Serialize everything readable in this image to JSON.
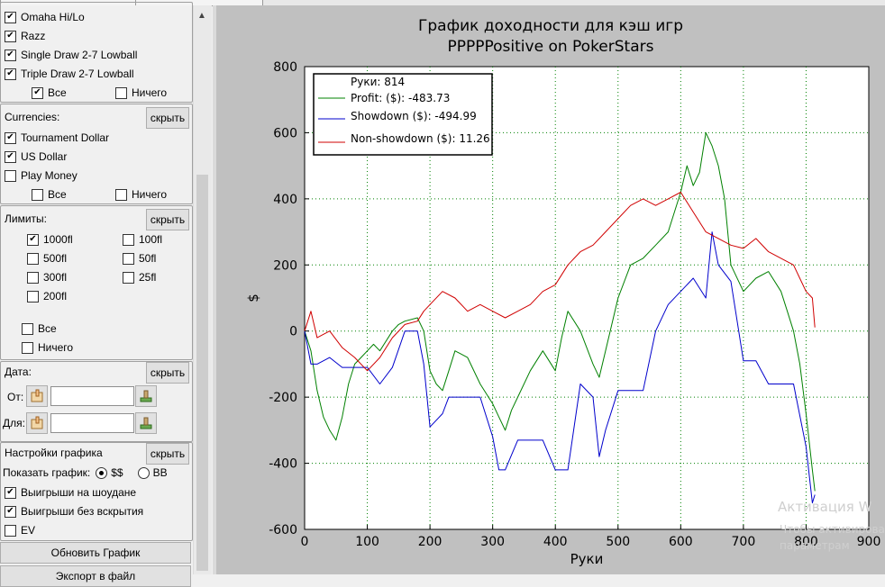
{
  "games": {
    "items": [
      {
        "label": "Omaha Hi/Lo",
        "checked": true
      },
      {
        "label": "Razz",
        "checked": true
      },
      {
        "label": "Single Draw 2-7 Lowball",
        "checked": true
      },
      {
        "label": "Triple Draw 2-7 Lowball",
        "checked": true
      }
    ],
    "all_label": "Все",
    "none_label": "Ничего"
  },
  "currencies": {
    "title": "Currencies:",
    "hide_label": "скрыть",
    "items": [
      {
        "label": "Tournament Dollar",
        "checked": true
      },
      {
        "label": "US Dollar",
        "checked": true
      },
      {
        "label": "Play Money",
        "checked": false
      }
    ],
    "all_label": "Все",
    "none_label": "Ничего"
  },
  "limits": {
    "title": "Лимиты:",
    "hide_label": "скрыть",
    "left": [
      {
        "label": "1000fl",
        "checked": true
      },
      {
        "label": "500fl",
        "checked": false
      },
      {
        "label": "300fl",
        "checked": false
      },
      {
        "label": "200fl",
        "checked": false
      }
    ],
    "right": [
      {
        "label": "100fl",
        "checked": false
      },
      {
        "label": "50fl",
        "checked": false
      },
      {
        "label": "25fl",
        "checked": false
      }
    ],
    "all_label": "Все",
    "none_label": "Ничего"
  },
  "date": {
    "title": "Дата:",
    "hide_label": "скрыть",
    "from_label": "От:",
    "to_label": "Для:",
    "from_value": "",
    "to_value": ""
  },
  "graph_settings": {
    "title": "Настройки  графика",
    "hide_label": "скрыть",
    "show_label": "Показать график:",
    "opt_money": "$$",
    "opt_bb": "BB",
    "selected": "$$",
    "checks": [
      {
        "label": "Выигрыши на шоудане",
        "checked": true
      },
      {
        "label": "Выигрыши без вскрытия",
        "checked": true
      },
      {
        "label": "EV",
        "checked": false
      }
    ]
  },
  "buttons": {
    "refresh": "Обновить График",
    "export": "Экспорт в файл"
  },
  "watermark": {
    "line1": "Активация W",
    "line2": "Чтобы активирова",
    "line3": "параметрам"
  },
  "colors": {
    "profit": "#008000",
    "showdown": "#0000cc",
    "nonshowdown": "#d00000",
    "panel": "#c0c0c0",
    "grid": "#008000"
  },
  "chart_data": {
    "type": "line",
    "title": "График доходности для кэш игр",
    "subtitle": "PPPPPositive on PokerStars",
    "xlabel": "Руки",
    "ylabel": "$",
    "xlim": [
      0,
      900
    ],
    "ylim": [
      -600,
      800
    ],
    "xticks": [
      0,
      100,
      200,
      300,
      400,
      500,
      600,
      700,
      800,
      900
    ],
    "yticks": [
      800,
      600,
      400,
      200,
      0,
      -200,
      -400,
      -600
    ],
    "grid": true,
    "legend_position": "top-left",
    "legend_header": "Руки: 814",
    "series": [
      {
        "name": "Profit: ($): -483.73",
        "color": "#008000",
        "x": [
          0,
          10,
          20,
          30,
          40,
          50,
          60,
          70,
          80,
          90,
          100,
          110,
          120,
          140,
          150,
          160,
          180,
          190,
          200,
          210,
          220,
          230,
          240,
          260,
          280,
          300,
          310,
          320,
          330,
          340,
          360,
          380,
          400,
          410,
          420,
          440,
          460,
          470,
          480,
          500,
          520,
          540,
          560,
          580,
          600,
          610,
          620,
          630,
          640,
          650,
          660,
          670,
          680,
          700,
          720,
          740,
          760,
          770,
          780,
          790,
          800,
          810,
          814
        ],
        "y": [
          0,
          -60,
          -180,
          -260,
          -300,
          -330,
          -260,
          -160,
          -100,
          -80,
          -60,
          -40,
          -60,
          0,
          20,
          30,
          40,
          0,
          -120,
          -160,
          -180,
          -120,
          -60,
          -80,
          -160,
          -220,
          -260,
          -300,
          -240,
          -200,
          -120,
          -60,
          -120,
          -20,
          60,
          0,
          -100,
          -140,
          -60,
          100,
          200,
          220,
          260,
          300,
          420,
          500,
          440,
          480,
          600,
          560,
          500,
          400,
          200,
          120,
          160,
          180,
          120,
          60,
          0,
          -100,
          -250,
          -420,
          -484
        ]
      },
      {
        "name": "Showdown ($): -494.99",
        "color": "#0000cc",
        "x": [
          0,
          10,
          20,
          40,
          60,
          80,
          100,
          120,
          140,
          160,
          180,
          190,
          200,
          220,
          230,
          240,
          260,
          280,
          300,
          310,
          320,
          340,
          360,
          380,
          400,
          420,
          440,
          460,
          470,
          480,
          500,
          520,
          540,
          560,
          580,
          600,
          620,
          640,
          650,
          660,
          680,
          700,
          720,
          740,
          760,
          780,
          800,
          810,
          814
        ],
        "y": [
          0,
          -100,
          -100,
          -80,
          -110,
          -110,
          -110,
          -160,
          -110,
          0,
          0,
          -100,
          -290,
          -250,
          -200,
          -200,
          -200,
          -200,
          -320,
          -420,
          -420,
          -330,
          -330,
          -330,
          -420,
          -420,
          -160,
          -200,
          -380,
          -300,
          -180,
          -180,
          -180,
          0,
          80,
          120,
          160,
          100,
          300,
          200,
          150,
          -90,
          -90,
          -160,
          -160,
          -160,
          -350,
          -520,
          -495
        ]
      },
      {
        "name": "Non-showdown ($): 11.26",
        "color": "#d00000",
        "x": [
          0,
          10,
          20,
          40,
          60,
          80,
          100,
          120,
          140,
          160,
          180,
          190,
          200,
          220,
          240,
          260,
          280,
          300,
          320,
          340,
          360,
          380,
          400,
          420,
          440,
          460,
          480,
          500,
          520,
          540,
          560,
          580,
          600,
          620,
          640,
          660,
          680,
          700,
          720,
          740,
          760,
          780,
          800,
          810,
          814
        ],
        "y": [
          0,
          60,
          -20,
          0,
          -50,
          -80,
          -120,
          -80,
          -20,
          20,
          30,
          60,
          80,
          120,
          100,
          60,
          80,
          60,
          40,
          60,
          80,
          120,
          140,
          200,
          240,
          260,
          300,
          340,
          380,
          400,
          380,
          400,
          420,
          360,
          300,
          280,
          260,
          250,
          280,
          240,
          220,
          200,
          120,
          100,
          11
        ]
      }
    ]
  }
}
